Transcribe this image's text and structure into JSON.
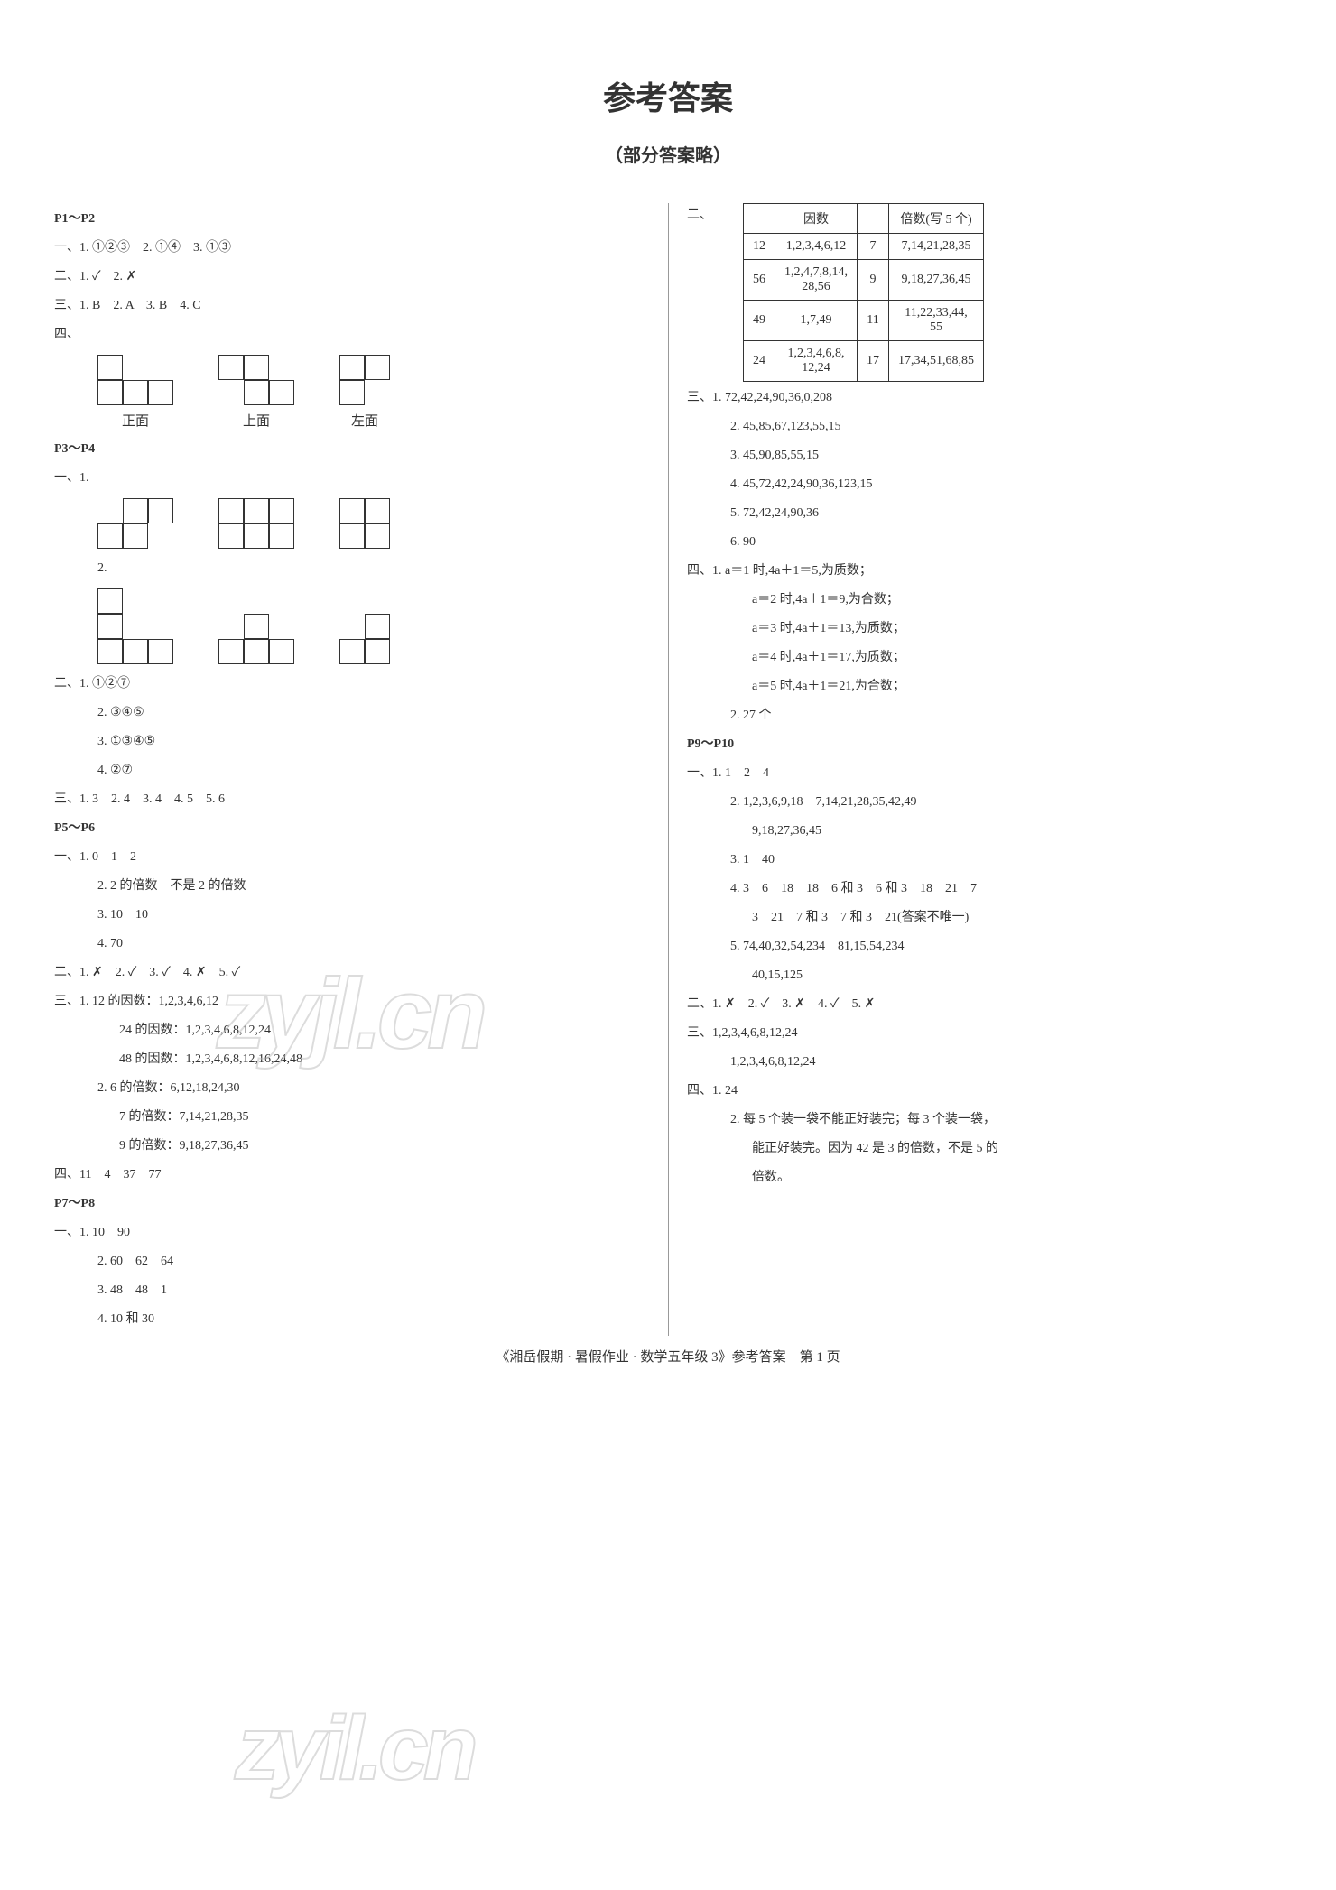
{
  "title": "参考答案",
  "subtitle": "（部分答案略）",
  "col_left": {
    "p1p2": {
      "header": "P1～P2",
      "l1": "一、1. ①②③　2. ①④　3. ①③",
      "l2": "二、1. ✓　2. ✗",
      "l3": "三、1. B　2. A　3. B　4. C",
      "l4_label": "四、",
      "shape_labels": [
        "正面",
        "上面",
        "左面"
      ]
    },
    "p3p4": {
      "header": "P3～P4",
      "l1_label": "一、1.",
      "l2_label": "2.",
      "l_er": "二、1. ①②⑦",
      "l_er2": "2. ③④⑤",
      "l_er3": "3. ①③④⑤",
      "l_er4": "4. ②⑦",
      "l_san": "三、1. 3　2. 4　3. 4　4. 5　5. 6"
    },
    "p5p6": {
      "header": "P5～P6",
      "l1": "一、1. 0　1　2",
      "l2": "2. 2 的倍数　不是 2 的倍数",
      "l3": "3. 10　10",
      "l4": "4. 70",
      "l_er": "二、1. ✗　2. ✓　3. ✓　4. ✗　5. ✓",
      "l_san1": "三、1. 12 的因数：1,2,3,4,6,12",
      "l_san2": "24 的因数：1,2,3,4,6,8,12,24",
      "l_san3": "48 的因数：1,2,3,4,6,8,12,16,24,48",
      "l_san4": "2. 6 的倍数：6,12,18,24,30",
      "l_san5": "7 的倍数：7,14,21,28,35",
      "l_san6": "9 的倍数：9,18,27,36,45",
      "l_si": "四、11　4　37　77"
    },
    "p7p8": {
      "header": "P7～P8",
      "l1": "一、1. 10　90",
      "l2": "2. 60　62　64",
      "l3": "3. 48　48　1",
      "l4": "4. 10 和 30"
    }
  },
  "col_right": {
    "table": {
      "er_label": "二、",
      "headers": [
        "",
        "因数",
        "",
        "倍数(写 5 个)"
      ],
      "rows": [
        [
          "12",
          "1,2,3,4,6,12",
          "7",
          "7,14,21,28,35"
        ],
        [
          "56",
          "1,2,4,7,8,14,\n28,56",
          "9",
          "9,18,27,36,45"
        ],
        [
          "49",
          "1,7,49",
          "11",
          "11,22,33,44,\n55"
        ],
        [
          "24",
          "1,2,3,4,6,8,\n12,24",
          "17",
          "17,34,51,68,85"
        ]
      ]
    },
    "san": {
      "l1": "三、1. 72,42,24,90,36,0,208",
      "l2": "2. 45,85,67,123,55,15",
      "l3": "3. 45,90,85,55,15",
      "l4": "4. 45,72,42,24,90,36,123,15",
      "l5": "5. 72,42,24,90,36",
      "l6": "6. 90"
    },
    "si": {
      "l1": "四、1. a＝1 时,4a＋1＝5,为质数；",
      "l2": "a＝2 时,4a＋1＝9,为合数；",
      "l3": "a＝3 时,4a＋1＝13,为质数；",
      "l4": "a＝4 时,4a＋1＝17,为质数；",
      "l5": "a＝5 时,4a＋1＝21,为合数；",
      "l6": "2. 27 个"
    },
    "p9p10": {
      "header": "P9～P10",
      "l1": "一、1. 1　2　4",
      "l2": "2. 1,2,3,6,9,18　7,14,21,28,35,42,49",
      "l2b": "9,18,27,36,45",
      "l3": "3. 1　40",
      "l4": "4. 3　6　18　18　6 和 3　6 和 3　18　21　7",
      "l4b": "3　21　7 和 3　7 和 3　21(答案不唯一)",
      "l5": "5. 74,40,32,54,234　81,15,54,234",
      "l5b": "40,15,125",
      "l_er": "二、1. ✗　2. ✓　3. ✗　4. ✓　5. ✗",
      "l_san1": "三、1,2,3,4,6,8,12,24",
      "l_san2": "1,2,3,4,6,8,12,24",
      "l_si1": "四、1. 24",
      "l_si2": "2. 每 5 个装一袋不能正好装完；每 3 个装一袋，",
      "l_si3": "能正好装完。因为 42 是 3 的倍数，不是 5 的",
      "l_si4": "倍数。"
    }
  },
  "watermark1": "zyjl.cn",
  "watermark2": "zyil.cn",
  "footer": "《湘岳假期 · 暑假作业 · 数学五年级 3》参考答案　第 1 页",
  "shapes": {
    "p1p2_four": [
      [
        [
          1,
          0,
          0
        ],
        [
          1,
          1,
          1
        ]
      ],
      [
        [
          1,
          1,
          0
        ],
        [
          0,
          1,
          1
        ]
      ],
      [
        [
          1,
          1
        ],
        [
          1,
          0
        ]
      ]
    ],
    "p3p4_one1": [
      [
        [
          0,
          1,
          1
        ],
        [
          1,
          1,
          0
        ]
      ],
      [
        [
          1,
          1,
          1
        ],
        [
          1,
          1,
          1
        ]
      ],
      [
        [
          1,
          1
        ],
        [
          1,
          1
        ]
      ]
    ],
    "p3p4_one2": [
      [
        [
          1,
          0,
          0
        ],
        [
          1,
          0,
          0
        ],
        [
          1,
          1,
          1
        ]
      ],
      [
        [
          0,
          1,
          0
        ],
        [
          1,
          1,
          1
        ]
      ],
      [
        [
          0,
          1
        ],
        [
          1,
          1
        ]
      ]
    ]
  }
}
